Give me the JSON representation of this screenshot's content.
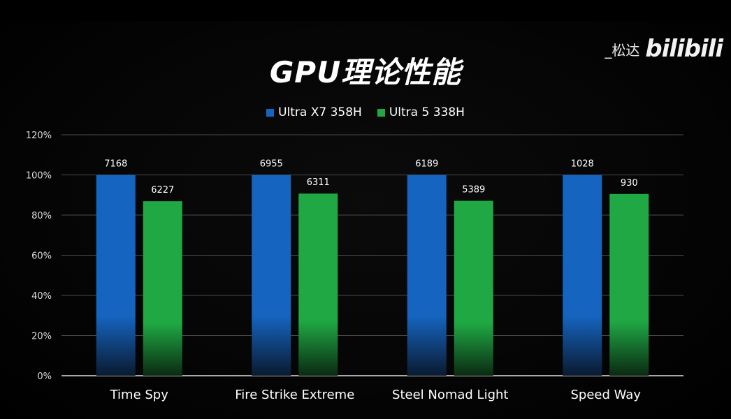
{
  "title": "GPU理论性能",
  "watermark": {
    "author": "_松达",
    "logo": "bilibili"
  },
  "colors": {
    "blue": "#1565c0",
    "green": "#1fa844",
    "background": "#000000"
  },
  "chart_data": {
    "type": "bar",
    "categories": [
      "Time Spy",
      "Fire Strike Extreme",
      "Steel Nomad Light",
      "Speed Way"
    ],
    "series": [
      {
        "name": "Ultra X7 358H",
        "values": [
          100,
          100,
          100,
          100
        ],
        "labels": [
          "7168",
          "6955",
          "6189",
          "1028"
        ],
        "color": "#1565c0"
      },
      {
        "name": "Ultra 5 338H",
        "values": [
          86.9,
          90.7,
          87.1,
          90.5
        ],
        "labels": [
          "6227",
          "6311",
          "5389",
          "930"
        ],
        "color": "#1fa844"
      }
    ],
    "ylim": [
      0,
      120
    ],
    "yticks": [
      "0%",
      "20%",
      "40%",
      "60%",
      "80%",
      "100%",
      "120%"
    ],
    "ytick_values": [
      0,
      20,
      40,
      60,
      80,
      100,
      120
    ],
    "grid": true,
    "legend": "top-center",
    "xlabel": "",
    "ylabel": ""
  }
}
